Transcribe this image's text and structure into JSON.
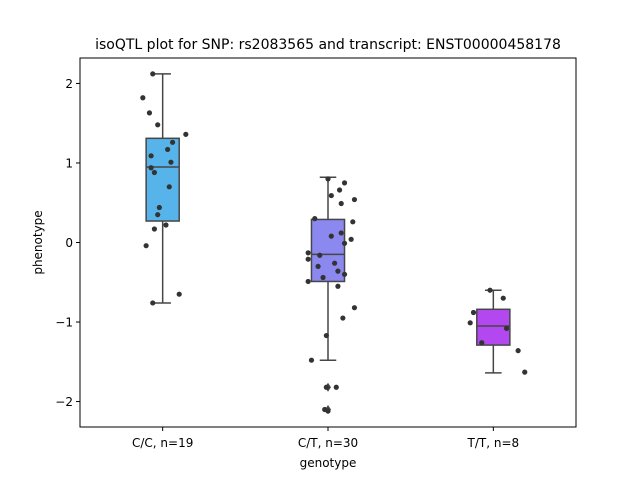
{
  "chart_data": {
    "type": "box",
    "title": "isoQTL plot for SNP: rs2083565 and transcript: ENST00000458178",
    "xlabel": "genotype",
    "ylabel": "phenotype",
    "ylim": [
      -2.32,
      2.32
    ],
    "yticks": [
      2,
      1,
      0,
      -1,
      -2
    ],
    "ytick_labels": [
      "2",
      "1",
      "0",
      "−1",
      "−2"
    ],
    "grid": false,
    "categories": [
      "C/C, n=19",
      "C/T, n=30",
      "T/T, n=8"
    ],
    "colors": [
      "#56b4ea",
      "#8b88f0",
      "#b448f0"
    ],
    "boxes": [
      {
        "q1": 0.27,
        "median": 0.95,
        "q3": 1.31,
        "whisker_low": -0.76,
        "whisker_high": 2.12,
        "outliers": []
      },
      {
        "q1": -0.49,
        "median": -0.15,
        "q3": 0.29,
        "whisker_low": -1.48,
        "whisker_high": 0.82,
        "outliers": [
          -1.82,
          -2.1
        ]
      },
      {
        "q1": -1.29,
        "median": -1.05,
        "q3": -0.84,
        "whisker_low": -1.64,
        "whisker_high": -0.6,
        "outliers": []
      }
    ],
    "points": [
      {
        "group": 0,
        "offset": -0.06,
        "value": 2.12
      },
      {
        "group": 0,
        "offset": -0.12,
        "value": 1.82
      },
      {
        "group": 0,
        "offset": -0.08,
        "value": 1.63
      },
      {
        "group": 0,
        "offset": -0.03,
        "value": 1.48
      },
      {
        "group": 0,
        "offset": 0.14,
        "value": 1.36
      },
      {
        "group": 0,
        "offset": 0.06,
        "value": 1.26
      },
      {
        "group": 0,
        "offset": 0.03,
        "value": 1.17
      },
      {
        "group": 0,
        "offset": -0.07,
        "value": 1.09
      },
      {
        "group": 0,
        "offset": 0.05,
        "value": 1.01
      },
      {
        "group": 0,
        "offset": -0.07,
        "value": 0.94
      },
      {
        "group": 0,
        "offset": -0.05,
        "value": 0.88
      },
      {
        "group": 0,
        "offset": 0.04,
        "value": 0.7
      },
      {
        "group": 0,
        "offset": -0.02,
        "value": 0.44
      },
      {
        "group": 0,
        "offset": -0.03,
        "value": 0.35
      },
      {
        "group": 0,
        "offset": 0.02,
        "value": 0.22
      },
      {
        "group": 0,
        "offset": -0.05,
        "value": 0.17
      },
      {
        "group": 0,
        "offset": -0.1,
        "value": -0.04
      },
      {
        "group": 0,
        "offset": 0.1,
        "value": -0.65
      },
      {
        "group": 0,
        "offset": -0.06,
        "value": -0.76
      },
      {
        "group": 1,
        "offset": 0.0,
        "value": 0.8
      },
      {
        "group": 1,
        "offset": 0.1,
        "value": 0.75
      },
      {
        "group": 1,
        "offset": 0.07,
        "value": 0.66
      },
      {
        "group": 1,
        "offset": 0.02,
        "value": 0.59
      },
      {
        "group": 1,
        "offset": 0.16,
        "value": 0.54
      },
      {
        "group": 1,
        "offset": 0.08,
        "value": 0.49
      },
      {
        "group": 1,
        "offset": -0.08,
        "value": 0.3
      },
      {
        "group": 1,
        "offset": 0.15,
        "value": 0.26
      },
      {
        "group": 1,
        "offset": 0.08,
        "value": 0.12
      },
      {
        "group": 1,
        "offset": 0.02,
        "value": 0.08
      },
      {
        "group": 1,
        "offset": 0.14,
        "value": 0.04
      },
      {
        "group": 1,
        "offset": 0.1,
        "value": -0.01
      },
      {
        "group": 1,
        "offset": -0.12,
        "value": -0.13
      },
      {
        "group": 1,
        "offset": -0.05,
        "value": -0.16
      },
      {
        "group": 1,
        "offset": -0.12,
        "value": -0.21
      },
      {
        "group": 1,
        "offset": 0.04,
        "value": -0.26
      },
      {
        "group": 1,
        "offset": -0.06,
        "value": -0.3
      },
      {
        "group": 1,
        "offset": 0.06,
        "value": -0.36
      },
      {
        "group": 1,
        "offset": 0.1,
        "value": -0.4
      },
      {
        "group": 1,
        "offset": -0.03,
        "value": -0.44
      },
      {
        "group": 1,
        "offset": -0.12,
        "value": -0.49
      },
      {
        "group": 1,
        "offset": 0.06,
        "value": -0.55
      },
      {
        "group": 1,
        "offset": 0.16,
        "value": -0.82
      },
      {
        "group": 1,
        "offset": 0.09,
        "value": -0.95
      },
      {
        "group": 1,
        "offset": -0.01,
        "value": -1.17
      },
      {
        "group": 1,
        "offset": -0.1,
        "value": -1.48
      },
      {
        "group": 1,
        "offset": 0.05,
        "value": -1.82
      },
      {
        "group": 1,
        "offset": -0.01,
        "value": -1.82
      },
      {
        "group": 1,
        "offset": -0.02,
        "value": -2.1
      },
      {
        "group": 1,
        "offset": 0.0,
        "value": -2.12
      },
      {
        "group": 2,
        "offset": -0.02,
        "value": -0.6
      },
      {
        "group": 2,
        "offset": 0.06,
        "value": -0.7
      },
      {
        "group": 2,
        "offset": -0.12,
        "value": -0.88
      },
      {
        "group": 2,
        "offset": -0.14,
        "value": -1.01
      },
      {
        "group": 2,
        "offset": 0.08,
        "value": -1.08
      },
      {
        "group": 2,
        "offset": -0.07,
        "value": -1.26
      },
      {
        "group": 2,
        "offset": 0.15,
        "value": -1.36
      },
      {
        "group": 2,
        "offset": 0.19,
        "value": -1.63
      }
    ]
  }
}
